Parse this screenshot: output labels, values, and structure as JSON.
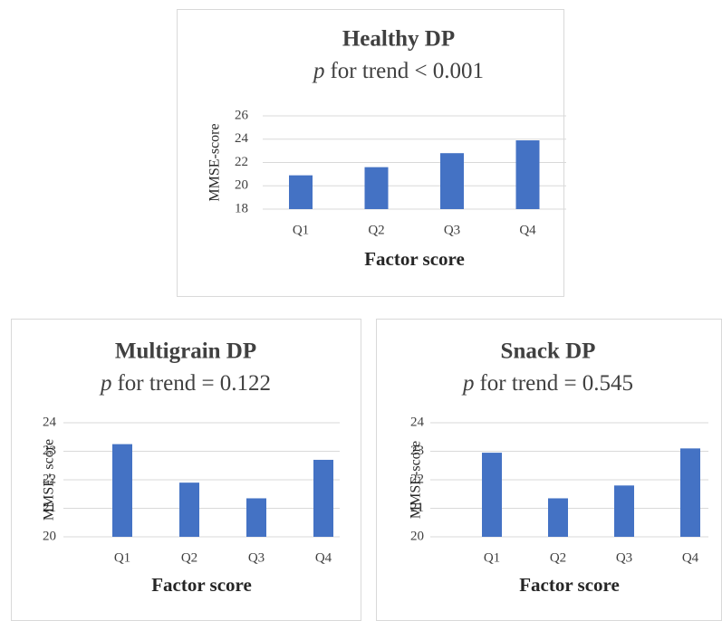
{
  "chart_data": [
    {
      "type": "bar",
      "title": "Healthy DP",
      "subtitle": {
        "italic": "p",
        "text": "for trend  < 0.001"
      },
      "x_label": "Factor score",
      "y_label": "MMSE-score",
      "categories": [
        "Q1",
        "Q2",
        "Q3",
        "Q4"
      ],
      "values": [
        20.9,
        21.6,
        22.8,
        23.9
      ],
      "color": "#4472c4",
      "ylim": [
        18,
        26
      ],
      "yticks": [
        18,
        20,
        22,
        24,
        26
      ],
      "grid": true
    },
    {
      "type": "bar",
      "title": "Multigrain DP",
      "subtitle": {
        "italic": "p",
        "text": "for trend = 0.122"
      },
      "x_label": "Factor score",
      "y_label": "MMSE- score",
      "categories": [
        "Q1",
        "Q2",
        "Q3",
        "Q4"
      ],
      "values": [
        23.25,
        21.9,
        21.35,
        22.7
      ],
      "color": "#4472c4",
      "ylim": [
        20,
        24
      ],
      "yticks": [
        20,
        21,
        22,
        23,
        24
      ],
      "grid": true
    },
    {
      "type": "bar",
      "title": "Snack DP",
      "subtitle": {
        "italic": "p",
        "text": "for trend = 0.545"
      },
      "x_label": "Factor score",
      "y_label": "MMSE-score",
      "categories": [
        "Q1",
        "Q2",
        "Q3",
        "Q4"
      ],
      "values": [
        22.95,
        21.35,
        21.8,
        23.1
      ],
      "color": "#4472c4",
      "ylim": [
        20,
        24
      ],
      "yticks": [
        20,
        21,
        22,
        23,
        24
      ],
      "grid": true
    }
  ]
}
